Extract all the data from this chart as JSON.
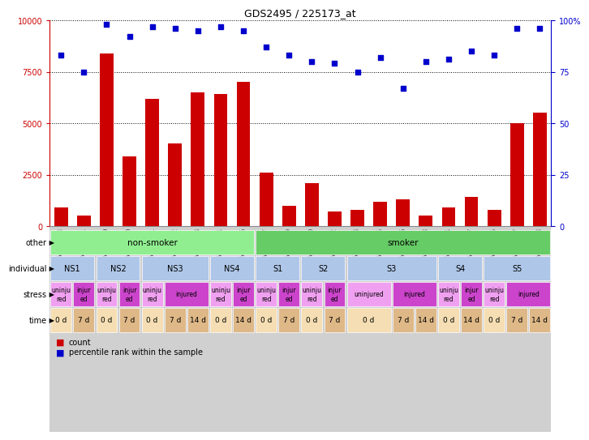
{
  "title": "GDS2495 / 225173_at",
  "samples": [
    "GSM122528",
    "GSM122531",
    "GSM122539",
    "GSM122540",
    "GSM122541",
    "GSM122542",
    "GSM122543",
    "GSM122544",
    "GSM122546",
    "GSM122527",
    "GSM122529",
    "GSM122530",
    "GSM122532",
    "GSM122533",
    "GSM122535",
    "GSM122536",
    "GSM122538",
    "GSM122534",
    "GSM122537",
    "GSM122545",
    "GSM122547",
    "GSM122548"
  ],
  "counts": [
    900,
    500,
    8400,
    3400,
    6200,
    4000,
    6500,
    6400,
    7000,
    2600,
    1000,
    2100,
    700,
    800,
    1200,
    1300,
    500,
    900,
    1400,
    800,
    5000,
    5500
  ],
  "percentiles": [
    83,
    75,
    98,
    92,
    97,
    96,
    95,
    97,
    95,
    87,
    83,
    80,
    79,
    75,
    82,
    67,
    80,
    81,
    85,
    83,
    96,
    96
  ],
  "bar_color": "#cc0000",
  "dot_color": "#0000cc",
  "ylim_left": [
    0,
    10000
  ],
  "ylim_right": [
    0,
    100
  ],
  "yticks_left": [
    0,
    2500,
    5000,
    7500,
    10000
  ],
  "yticks_right": [
    0,
    25,
    50,
    75,
    100
  ],
  "other_row": {
    "groups": [
      {
        "label": "non-smoker",
        "start": 0,
        "end": 9,
        "color": "#90ee90"
      },
      {
        "label": "smoker",
        "start": 9,
        "end": 22,
        "color": "#66cc66"
      }
    ]
  },
  "individual_row": {
    "groups": [
      {
        "label": "NS1",
        "start": 0,
        "end": 2,
        "color": "#aec6e8"
      },
      {
        "label": "NS2",
        "start": 2,
        "end": 4,
        "color": "#aec6e8"
      },
      {
        "label": "NS3",
        "start": 4,
        "end": 7,
        "color": "#aec6e8"
      },
      {
        "label": "NS4",
        "start": 7,
        "end": 9,
        "color": "#aec6e8"
      },
      {
        "label": "S1",
        "start": 9,
        "end": 11,
        "color": "#aec6e8"
      },
      {
        "label": "S2",
        "start": 11,
        "end": 13,
        "color": "#aec6e8"
      },
      {
        "label": "S3",
        "start": 13,
        "end": 17,
        "color": "#aec6e8"
      },
      {
        "label": "S4",
        "start": 17,
        "end": 19,
        "color": "#aec6e8"
      },
      {
        "label": "S5",
        "start": 19,
        "end": 22,
        "color": "#aec6e8"
      }
    ]
  },
  "stress_row": {
    "cells": [
      {
        "label": "uninju\nred",
        "start": 0,
        "end": 1,
        "color": "#f0a0f0"
      },
      {
        "label": "injur\ned",
        "start": 1,
        "end": 2,
        "color": "#cc44cc"
      },
      {
        "label": "uninju\nred",
        "start": 2,
        "end": 3,
        "color": "#f0a0f0"
      },
      {
        "label": "injur\ned",
        "start": 3,
        "end": 4,
        "color": "#cc44cc"
      },
      {
        "label": "uninju\nred",
        "start": 4,
        "end": 5,
        "color": "#f0a0f0"
      },
      {
        "label": "injured",
        "start": 5,
        "end": 7,
        "color": "#cc44cc"
      },
      {
        "label": "uninju\nred",
        "start": 7,
        "end": 8,
        "color": "#f0a0f0"
      },
      {
        "label": "injur\ned",
        "start": 8,
        "end": 9,
        "color": "#cc44cc"
      },
      {
        "label": "uninju\nred",
        "start": 9,
        "end": 10,
        "color": "#f0a0f0"
      },
      {
        "label": "injur\ned",
        "start": 10,
        "end": 11,
        "color": "#cc44cc"
      },
      {
        "label": "uninju\nred",
        "start": 11,
        "end": 12,
        "color": "#f0a0f0"
      },
      {
        "label": "injur\ned",
        "start": 12,
        "end": 13,
        "color": "#cc44cc"
      },
      {
        "label": "uninjured",
        "start": 13,
        "end": 15,
        "color": "#f0a0f0"
      },
      {
        "label": "injured",
        "start": 15,
        "end": 17,
        "color": "#cc44cc"
      },
      {
        "label": "uninju\nred",
        "start": 17,
        "end": 18,
        "color": "#f0a0f0"
      },
      {
        "label": "injur\ned",
        "start": 18,
        "end": 19,
        "color": "#cc44cc"
      },
      {
        "label": "uninju\nred",
        "start": 19,
        "end": 20,
        "color": "#f0a0f0"
      },
      {
        "label": "injured",
        "start": 20,
        "end": 22,
        "color": "#cc44cc"
      }
    ]
  },
  "time_row": {
    "cells": [
      {
        "label": "0 d",
        "start": 0,
        "end": 1,
        "color": "#f5deb3"
      },
      {
        "label": "7 d",
        "start": 1,
        "end": 2,
        "color": "#deb887"
      },
      {
        "label": "0 d",
        "start": 2,
        "end": 3,
        "color": "#f5deb3"
      },
      {
        "label": "7 d",
        "start": 3,
        "end": 4,
        "color": "#deb887"
      },
      {
        "label": "0 d",
        "start": 4,
        "end": 5,
        "color": "#f5deb3"
      },
      {
        "label": "7 d",
        "start": 5,
        "end": 6,
        "color": "#deb887"
      },
      {
        "label": "14 d",
        "start": 6,
        "end": 7,
        "color": "#deb887"
      },
      {
        "label": "0 d",
        "start": 7,
        "end": 8,
        "color": "#f5deb3"
      },
      {
        "label": "14 d",
        "start": 8,
        "end": 9,
        "color": "#deb887"
      },
      {
        "label": "0 d",
        "start": 9,
        "end": 10,
        "color": "#f5deb3"
      },
      {
        "label": "7 d",
        "start": 10,
        "end": 11,
        "color": "#deb887"
      },
      {
        "label": "0 d",
        "start": 11,
        "end": 12,
        "color": "#f5deb3"
      },
      {
        "label": "7 d",
        "start": 12,
        "end": 13,
        "color": "#deb887"
      },
      {
        "label": "0 d",
        "start": 13,
        "end": 15,
        "color": "#f5deb3"
      },
      {
        "label": "7 d",
        "start": 15,
        "end": 16,
        "color": "#deb887"
      },
      {
        "label": "14 d",
        "start": 16,
        "end": 17,
        "color": "#deb887"
      },
      {
        "label": "0 d",
        "start": 17,
        "end": 18,
        "color": "#f5deb3"
      },
      {
        "label": "14 d",
        "start": 18,
        "end": 19,
        "color": "#deb887"
      },
      {
        "label": "0 d",
        "start": 19,
        "end": 20,
        "color": "#f5deb3"
      },
      {
        "label": "7 d",
        "start": 20,
        "end": 21,
        "color": "#deb887"
      },
      {
        "label": "14 d",
        "start": 21,
        "end": 22,
        "color": "#deb887"
      }
    ]
  },
  "row_labels": [
    "other",
    "individual",
    "stress",
    "time"
  ],
  "legend_items": [
    {
      "color": "#cc0000",
      "label": "count"
    },
    {
      "color": "#0000cc",
      "label": "percentile rank within the sample"
    }
  ],
  "chart_bg": "#ffffff",
  "fig_bg": "#ffffff"
}
